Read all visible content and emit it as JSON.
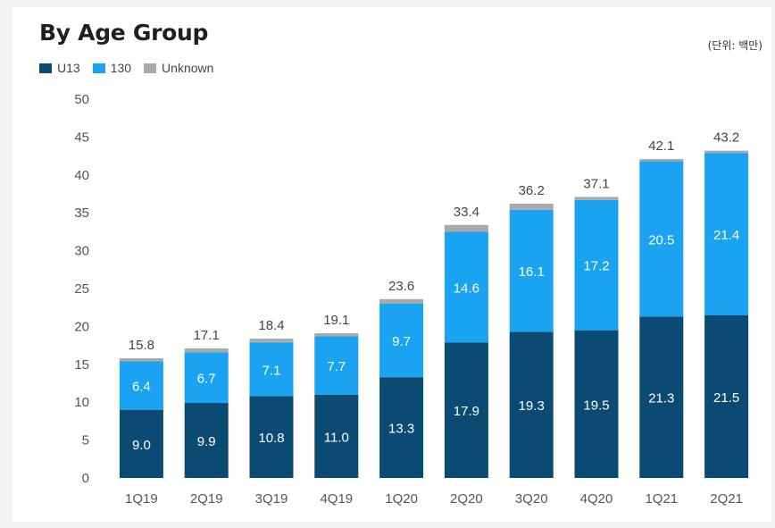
{
  "title": "By Age Group",
  "unit_note": "(단위: 백만)",
  "colors": {
    "U13": "#0b4a73",
    "130": "#1aa3f0",
    "Unknown": "#a9a9a9"
  },
  "chart_data": {
    "type": "bar",
    "stacked": true,
    "categories": [
      "1Q19",
      "2Q19",
      "3Q19",
      "4Q19",
      "1Q20",
      "2Q20",
      "3Q20",
      "4Q20",
      "1Q21",
      "2Q21"
    ],
    "series": [
      {
        "name": "U13",
        "values": [
          9.0,
          9.9,
          10.8,
          11.0,
          13.3,
          17.9,
          19.3,
          19.5,
          21.3,
          21.5
        ]
      },
      {
        "name": "130",
        "values": [
          6.4,
          6.7,
          7.1,
          7.7,
          9.7,
          14.6,
          16.1,
          17.2,
          20.5,
          21.4
        ]
      },
      {
        "name": "Unknown",
        "values": [
          0.4,
          0.5,
          0.5,
          0.4,
          0.6,
          0.9,
          0.8,
          0.4,
          0.3,
          0.3
        ]
      }
    ],
    "segment_labels": {
      "U13": [
        "9.0",
        "9.9",
        "10.8",
        "11.0",
        "13.3",
        "17.9",
        "19.3",
        "19.5",
        "21.3",
        "21.5"
      ],
      "130": [
        "6.4",
        "6.7",
        "7.1",
        "7.7",
        "9.7",
        "14.6",
        "16.1",
        "17.2",
        "20.5",
        "21.4"
      ]
    },
    "totals": [
      "15.8",
      "17.1",
      "18.4",
      "19.1",
      "23.6",
      "33.4",
      "36.2",
      "37.1",
      "42.1",
      "43.2"
    ],
    "ylim": [
      0,
      50
    ],
    "yticks": [
      "0",
      "5",
      "10",
      "15",
      "20",
      "25",
      "30",
      "35",
      "40",
      "45",
      "50"
    ],
    "xlabel": "",
    "ylabel": "",
    "grid": false,
    "legend_position": "top-left"
  }
}
